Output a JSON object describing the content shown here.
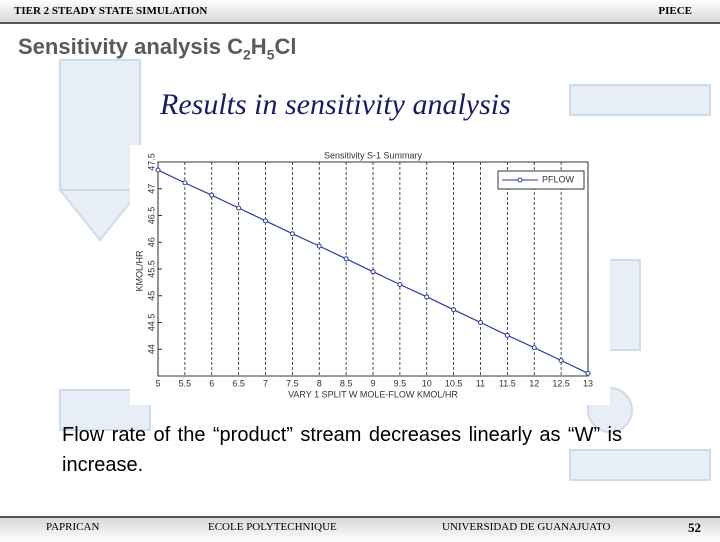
{
  "header": {
    "left": "TIER 2   STEADY STATE SIMULATION",
    "right": "PIECE"
  },
  "heading": [
    "Sensitivity analysis C",
    "2",
    "H",
    "5",
    "Cl"
  ],
  "subtitle": "Results in sensitivity analysis",
  "chart_data": {
    "type": "line",
    "title": "Sensitivity S-1 Summary",
    "x_label": "VARY 1 SPLIT W MOLE-FLOW KMOL/HR",
    "y_label": "KMOL/HR",
    "x": [
      5,
      5.5,
      6,
      6.5,
      7,
      7.5,
      8,
      8.5,
      9,
      9.5,
      10,
      10.5,
      11,
      11.5,
      12,
      12.5,
      13
    ],
    "series": [
      {
        "name": "PFLOW",
        "color": "#2a3aa0",
        "values": [
          47.35,
          47.11,
          46.88,
          46.64,
          46.4,
          46.16,
          45.93,
          45.69,
          45.45,
          45.21,
          44.98,
          44.74,
          44.5,
          44.26,
          44.03,
          43.79,
          43.55
        ]
      }
    ],
    "xlim": [
      5,
      13
    ],
    "xticks": [
      5,
      5.5,
      6,
      6.5,
      7,
      7.5,
      8,
      8.5,
      9,
      9.5,
      10,
      10.5,
      11,
      11.5,
      12,
      12.5,
      13
    ],
    "ylim": [
      43.5,
      47.5
    ],
    "yticks": [
      44,
      44.5,
      45,
      45.5,
      46,
      46.5,
      47,
      47.5
    ],
    "grid": true
  },
  "body": "Flow rate of the “product” stream decreases linearly as “W” is increase.",
  "footer": [
    "PAPRICAN",
    "ECOLE POLYTECHNIQUE",
    "UNIVERSIDAD DE GUANAJUATO",
    "52"
  ]
}
